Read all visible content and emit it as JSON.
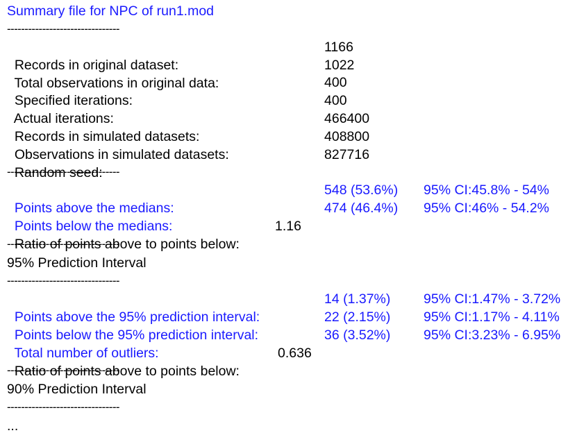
{
  "title": "Summary file for NPC of run1.mod",
  "separator": "--------------------------------",
  "info_rows": [
    {
      "label": "Records in original dataset:",
      "value": "1166"
    },
    {
      "label": "Total observations in original data:",
      "value": "1022"
    },
    {
      "label": "Specified iterations:",
      "value": "400"
    },
    {
      "label": "Actual iterations:",
      "value": "400"
    },
    {
      "label": "Records in simulated datasets:",
      "value": "466400"
    },
    {
      "label": "Observations in simulated datasets:",
      "value": "408800"
    },
    {
      "label": "Random seed:",
      "value": "827716"
    }
  ],
  "median_rows": [
    {
      "label": "Points above the medians:",
      "value": "548 (53.6%)",
      "ci": "95% CI:45.8% - 54%"
    },
    {
      "label": "Points below the medians:",
      "value": "474 (46.4%)",
      "ci": "95% CI:46% - 54.2%"
    }
  ],
  "median_ratio": {
    "label": "Ratio of points above to points below:",
    "value": "1.16"
  },
  "pi95_heading": "95% Prediction Interval",
  "pi95_rows": [
    {
      "label": "Points above the 95% prediction interval:",
      "value": "14 (1.37%)",
      "ci": "95% CI:1.47% - 3.72%"
    },
    {
      "label": "Points below the 95% prediction interval:",
      "value": "22 (2.15%)",
      "ci": "95% CI:1.17% - 4.11%"
    },
    {
      "label": "Total number of outliers:",
      "value": "36 (3.52%)",
      "ci": "95% CI:3.23% - 6.95%"
    }
  ],
  "pi95_ratio": {
    "label": "Ratio of points above to points below:",
    "value": "0.636"
  },
  "pi90_heading": "90% Prediction Interval",
  "ellipsis": "..."
}
